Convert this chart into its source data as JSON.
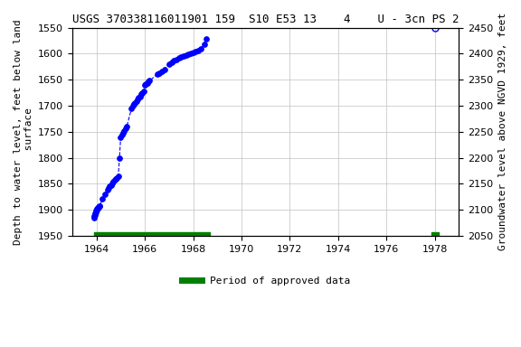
{
  "title": "USGS 370338116011901 159  S10 E53 13    4    U - 3cn PS 2",
  "ylabel_left": "Depth to water level, feet below land\n surface",
  "ylabel_right": "Groundwater level above NGVD 1929, feet",
  "xlim": [
    1963.0,
    1979.0
  ],
  "ylim_left_top": 1550,
  "ylim_left_bottom": 1950,
  "ylim_right_top": 2450,
  "ylim_right_bottom": 2050,
  "xticks": [
    1964,
    1966,
    1968,
    1970,
    1972,
    1974,
    1976,
    1978
  ],
  "yticks_left": [
    1550,
    1600,
    1650,
    1700,
    1750,
    1800,
    1850,
    1900,
    1950
  ],
  "yticks_right": [
    2450,
    2400,
    2350,
    2300,
    2250,
    2200,
    2150,
    2100,
    2050
  ],
  "background_color": "#ffffff",
  "grid_color": "#c0c0c0",
  "line_color": "#0000ff",
  "marker_facecolor": "#0000ff",
  "marker_edgecolor": "#0000ff",
  "title_fontsize": 9,
  "axis_label_fontsize": 8,
  "tick_fontsize": 8,
  "legend_label": "Period of approved data",
  "legend_color": "#008000",
  "segment1_x": [
    1963.88,
    1963.9,
    1963.92,
    1963.94,
    1963.96,
    1963.98,
    1964.0,
    1964.02,
    1964.04,
    1964.06,
    1964.08,
    1964.1,
    1964.12,
    1964.14,
    1964.25,
    1964.35,
    1964.45,
    1964.5,
    1964.55,
    1964.6,
    1964.65,
    1964.7,
    1964.75,
    1964.8,
    1964.85,
    1964.9,
    1964.95,
    1965.0,
    1965.05,
    1965.1,
    1965.15,
    1965.2,
    1965.25,
    1965.45,
    1965.5,
    1965.55,
    1965.6,
    1965.65,
    1965.7,
    1965.75,
    1965.8,
    1965.85,
    1965.9,
    1965.95,
    1966.0,
    1966.05,
    1966.1,
    1966.15,
    1966.2,
    1966.5,
    1966.6,
    1966.7,
    1966.8,
    1967.0,
    1967.1,
    1967.2,
    1967.3,
    1967.4,
    1967.5,
    1967.6,
    1967.7,
    1967.8,
    1967.9,
    1968.0,
    1968.1,
    1968.2,
    1968.3,
    1968.45,
    1968.55
  ],
  "segment1_y": [
    1915,
    1912,
    1910,
    1907,
    1905,
    1902,
    1900,
    1898,
    1897,
    1896,
    1895,
    1894,
    1893,
    1892,
    1878,
    1870,
    1862,
    1858,
    1855,
    1852,
    1849,
    1846,
    1843,
    1840,
    1838,
    1835,
    1800,
    1760,
    1756,
    1752,
    1748,
    1744,
    1740,
    1705,
    1700,
    1697,
    1694,
    1691,
    1688,
    1685,
    1682,
    1678,
    1675,
    1672,
    1660,
    1658,
    1656,
    1654,
    1652,
    1640,
    1637,
    1634,
    1630,
    1620,
    1617,
    1614,
    1611,
    1608,
    1606,
    1604,
    1602,
    1601,
    1600,
    1598,
    1596,
    1594,
    1590,
    1582,
    1572
  ],
  "segment2_x": [
    1978.0
  ],
  "segment2_y": [
    1550
  ],
  "approved_bars": [
    {
      "x_start": 1963.88,
      "x_end": 1968.7
    },
    {
      "x_start": 1977.85,
      "x_end": 1978.15
    }
  ]
}
